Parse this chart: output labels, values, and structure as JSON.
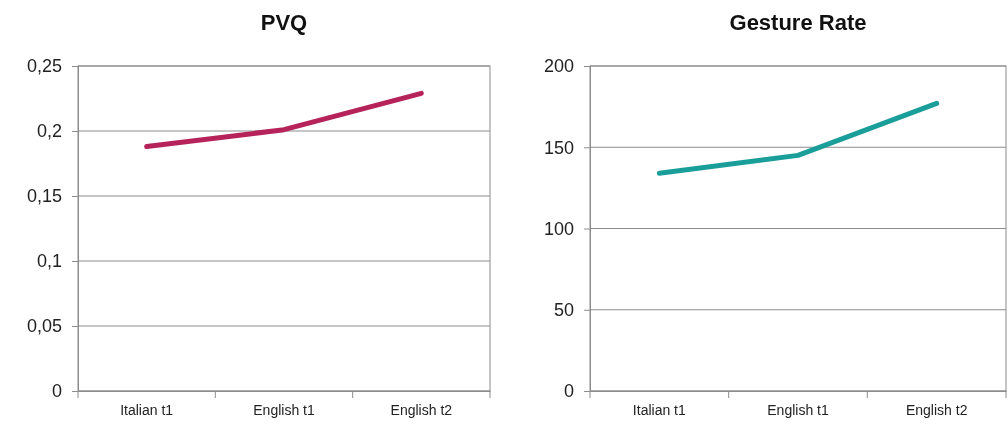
{
  "chart_data": [
    {
      "type": "line",
      "title": "PVQ",
      "categories": [
        "Italian t1",
        "English t1",
        "English t2"
      ],
      "series": [
        {
          "color": "#b5235a",
          "values": [
            0.188,
            0.201,
            0.229
          ]
        }
      ],
      "ylim": [
        0,
        0.25
      ],
      "yticks": [
        0,
        {
          "value": 0.05,
          "label": "0,05"
        },
        {
          "value": 0.1,
          "label": "0,1"
        },
        {
          "value": 0.15,
          "label": "0,15"
        },
        {
          "value": 0.2,
          "label": "0,2"
        },
        {
          "value": 0.25,
          "label": "0,25"
        }
      ],
      "grid": "y",
      "marker": "none",
      "line_style": "solid"
    },
    {
      "type": "line",
      "title": "Gesture Rate",
      "categories": [
        "Italian t1",
        "English t1",
        "English t2"
      ],
      "series": [
        {
          "color": "#1a9e9a",
          "values": [
            134,
            145,
            177
          ]
        }
      ],
      "ylim": [
        0,
        200
      ],
      "yticks": [
        0,
        50,
        100,
        150,
        200
      ],
      "grid": "y",
      "marker": "none",
      "line_style": "solid"
    }
  ]
}
